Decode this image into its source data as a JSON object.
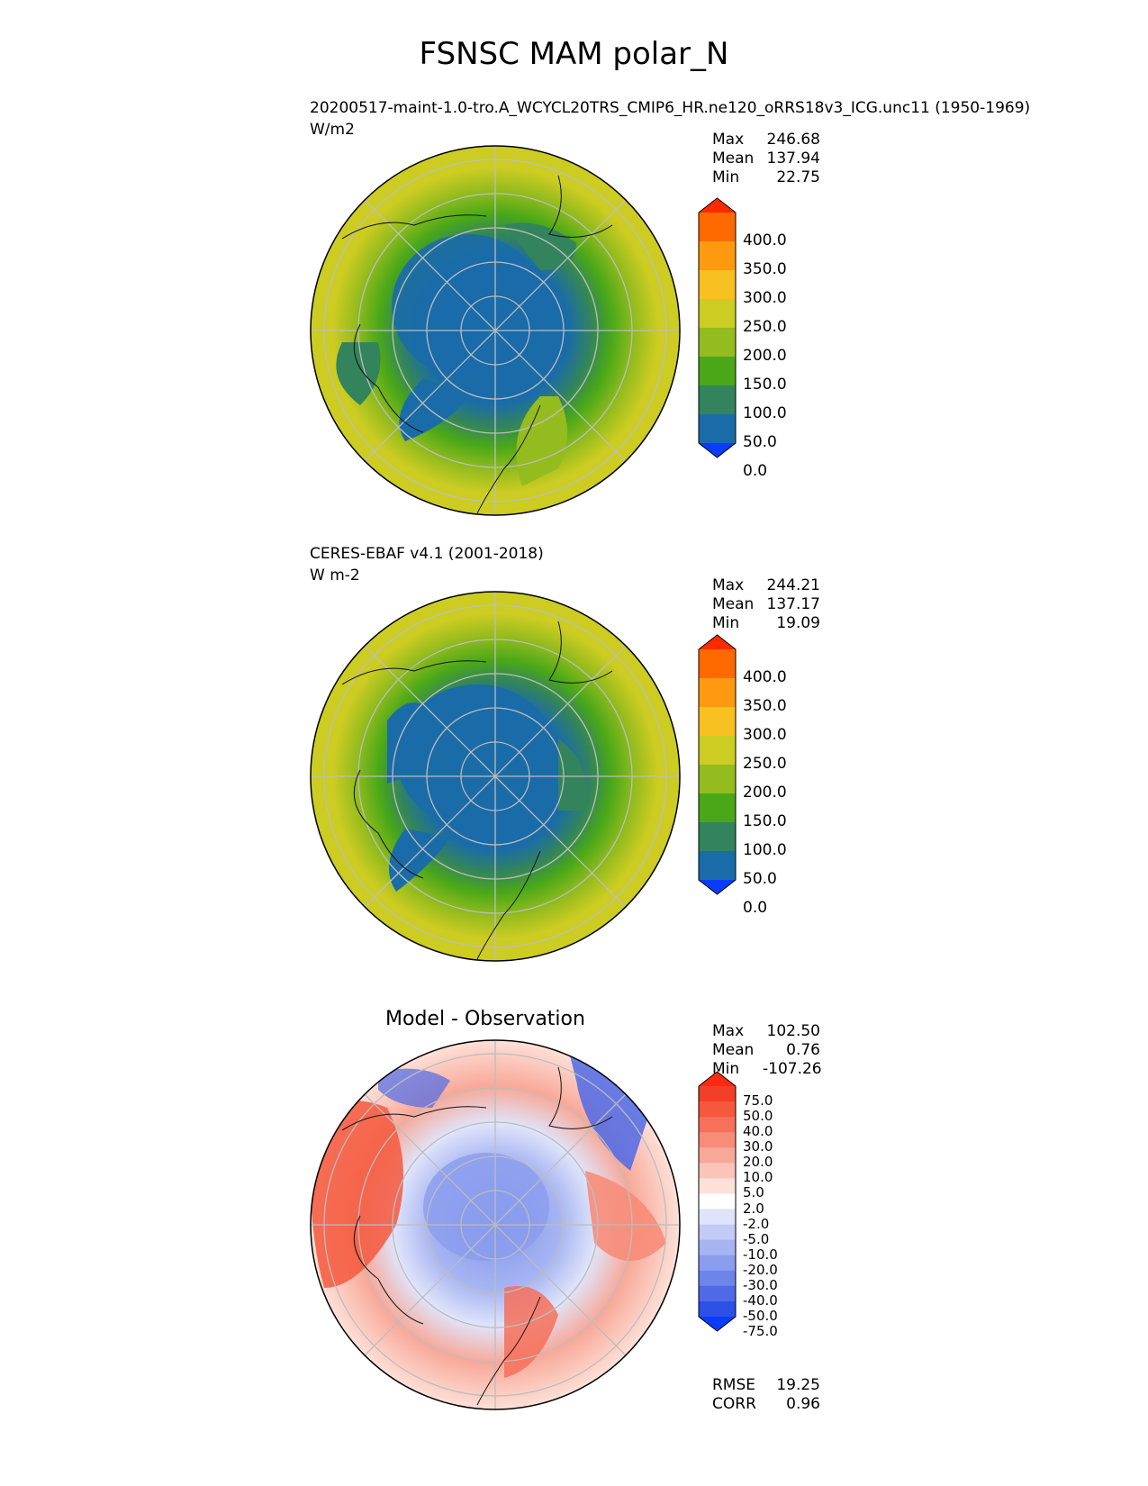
{
  "figure_title": "FSNSC MAM polar_N",
  "panels": [
    {
      "id": "test",
      "title_line1": "20200517-maint-1.0-tro.A_WCYCL20TRS_CMIP6_HR.ne120_oRRS18v3_ICG.unc11 (1950-1969)",
      "title_line2": "W/m2",
      "stats": [
        {
          "label": "Max",
          "value": "246.68"
        },
        {
          "label": "Mean",
          "value": "137.94"
        },
        {
          "label": "Min",
          "value": "22.75"
        }
      ],
      "colorbar": {
        "labels": [
          "400.0",
          "350.0",
          "300.0",
          "250.0",
          "200.0",
          "150.0",
          "100.0",
          "50.0",
          "0.0"
        ],
        "colors": [
          "#ff2a00",
          "#ff6a00",
          "#ff9a10",
          "#f8c020",
          "#cccc22",
          "#94bc1e",
          "#4aa818",
          "#33845c",
          "#1a6ca8",
          "#0a3cff"
        ]
      }
    },
    {
      "id": "reference",
      "title_line1": "CERES-EBAF v4.1 (2001-2018)",
      "title_line2": "W m-2",
      "stats": [
        {
          "label": "Max",
          "value": "244.21"
        },
        {
          "label": "Mean",
          "value": "137.17"
        },
        {
          "label": "Min",
          "value": "19.09"
        }
      ],
      "colorbar": {
        "labels": [
          "400.0",
          "350.0",
          "300.0",
          "250.0",
          "200.0",
          "150.0",
          "100.0",
          "50.0",
          "0.0"
        ],
        "colors": [
          "#ff2a00",
          "#ff6a00",
          "#ff9a10",
          "#f8c020",
          "#cccc22",
          "#94bc1e",
          "#4aa818",
          "#33845c",
          "#1a6ca8",
          "#0a3cff"
        ]
      }
    },
    {
      "id": "difference",
      "title": "Model - Observation",
      "stats": [
        {
          "label": "Max",
          "value": "102.50"
        },
        {
          "label": "Mean",
          "value": "0.76"
        },
        {
          "label": "Min",
          "value": "-107.26"
        }
      ],
      "colorbar": {
        "labels": [
          "75.0",
          "50.0",
          "40.0",
          "30.0",
          "20.0",
          "10.0",
          "5.0",
          "2.0",
          "-2.0",
          "-5.0",
          "-10.0",
          "-20.0",
          "-30.0",
          "-40.0",
          "-50.0",
          "-75.0"
        ],
        "colors": [
          "#ff2a10",
          "#f43f28",
          "#f5583d",
          "#f6705a",
          "#f78c78",
          "#f8a898",
          "#fac4b8",
          "#fde0d8",
          "#ffffff",
          "#dfe4fa",
          "#c2cbf6",
          "#a6b4f2",
          "#8a9cee",
          "#6d84ea",
          "#4f6ae6",
          "#2c50e8",
          "#0a3cff"
        ]
      },
      "metrics": [
        {
          "label": "RMSE",
          "value": "19.25"
        },
        {
          "label": "CORR",
          "value": "0.96"
        }
      ]
    }
  ]
}
